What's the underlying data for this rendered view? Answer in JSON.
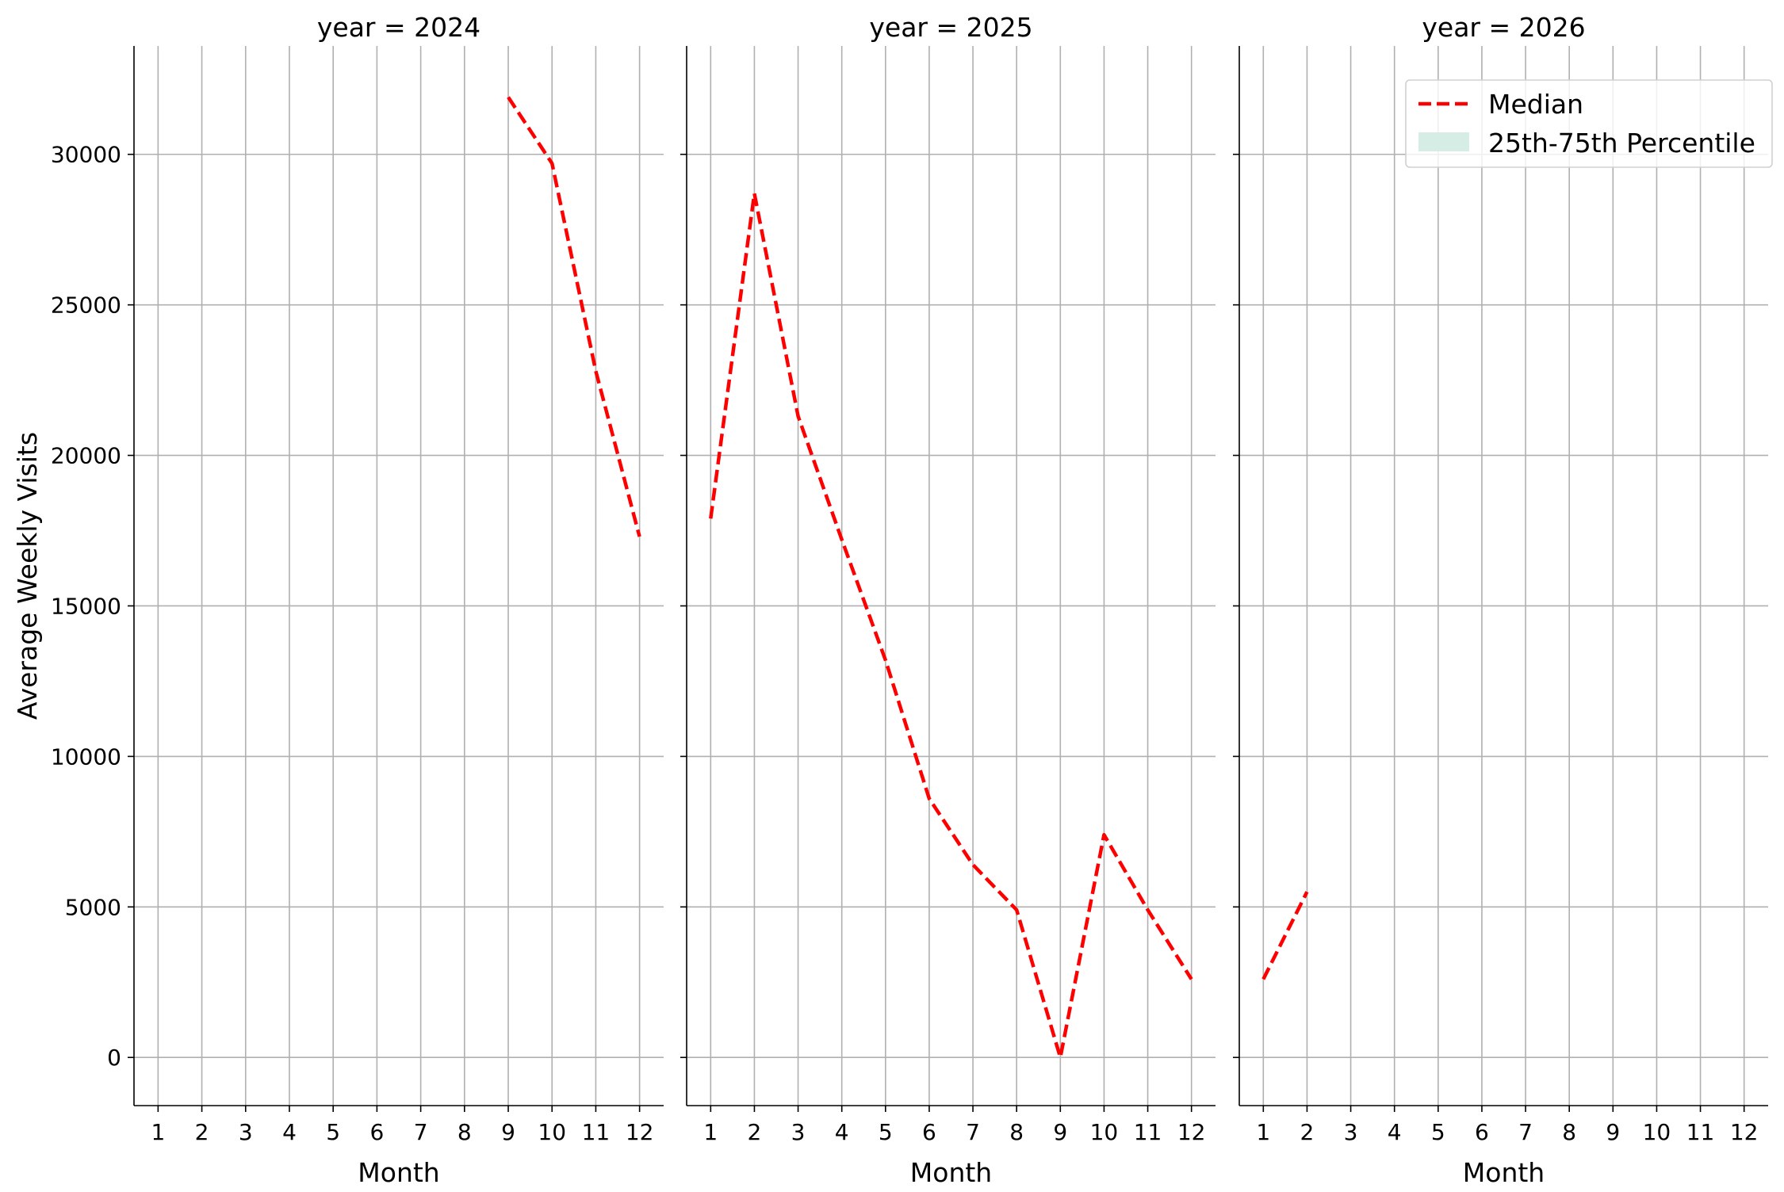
{
  "chart_data": {
    "type": "line",
    "ylabel": "Average Weekly Visits",
    "xlabel": "Month",
    "ylim": [
      -1600,
      33600
    ],
    "xlim": [
      0.45,
      12.55
    ],
    "y_ticks": [
      0,
      5000,
      10000,
      15000,
      20000,
      25000,
      30000
    ],
    "x_ticks": [
      1,
      2,
      3,
      4,
      5,
      6,
      7,
      8,
      9,
      10,
      11,
      12
    ],
    "grid": true,
    "colors": {
      "median": "#ff0000",
      "percentile": "#d6ede6"
    },
    "legend": {
      "placement": "top-right",
      "entries": [
        "Median",
        "25th-75th Percentile"
      ]
    },
    "facets": [
      {
        "title": "year = 2024",
        "series": [
          {
            "name": "Median",
            "x": [
              9,
              10,
              11,
              12
            ],
            "y": [
              31900,
              29700,
              22800,
              17300
            ]
          }
        ]
      },
      {
        "title": "year = 2025",
        "series": [
          {
            "name": "Median",
            "x": [
              1,
              2,
              3,
              4,
              5,
              6,
              7,
              8,
              9,
              10,
              11,
              12
            ],
            "y": [
              17900,
              28700,
              21300,
              17200,
              13200,
              8600,
              6400,
              4900,
              0,
              7400,
              4900,
              2600
            ]
          }
        ]
      },
      {
        "title": "year = 2026",
        "series": [
          {
            "name": "Median",
            "x": [
              1,
              2
            ],
            "y": [
              2600,
              5500
            ]
          }
        ]
      }
    ]
  }
}
